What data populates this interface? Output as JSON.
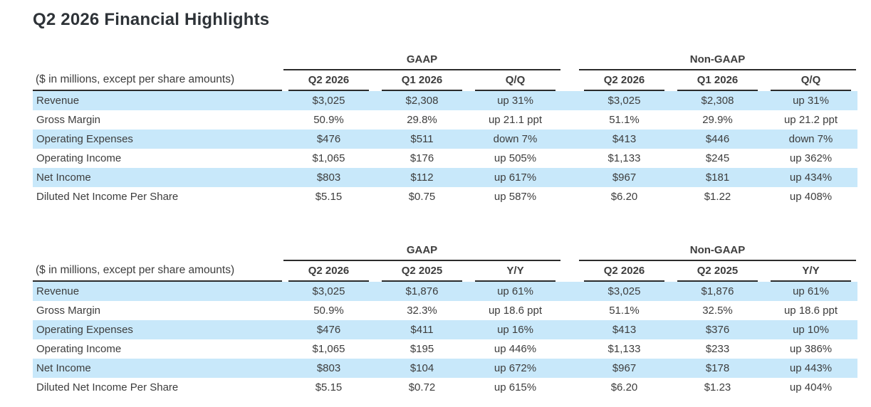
{
  "page": {
    "title": "Q2 2026 Financial Highlights"
  },
  "colors": {
    "row_stripe": "#c8e8fa",
    "rule": "#2b2b2b",
    "text": "#3d3d3d",
    "title": "#2e3338"
  },
  "tables": [
    {
      "note": "($ in millions, except per share amounts)",
      "groups": [
        "GAAP",
        "Non-GAAP"
      ],
      "columns": [
        "Q2 2026",
        "Q1 2026",
        "Q/Q",
        "Q2 2026",
        "Q1 2026",
        "Q/Q"
      ],
      "rows": [
        {
          "label": "Revenue",
          "values": [
            "$3,025",
            "$2,308",
            "up 31%",
            "$3,025",
            "$2,308",
            "up 31%"
          ]
        },
        {
          "label": "Gross Margin",
          "values": [
            "50.9%",
            "29.8%",
            "up 21.1 ppt",
            "51.1%",
            "29.9%",
            "up 21.2 ppt"
          ]
        },
        {
          "label": "Operating Expenses",
          "values": [
            "$476",
            "$511",
            "down 7%",
            "$413",
            "$446",
            "down 7%"
          ]
        },
        {
          "label": "Operating Income",
          "values": [
            "$1,065",
            "$176",
            "up 505%",
            "$1,133",
            "$245",
            "up 362%"
          ]
        },
        {
          "label": "Net Income",
          "values": [
            "$803",
            "$112",
            "up 617%",
            "$967",
            "$181",
            "up 434%"
          ]
        },
        {
          "label": "Diluted Net Income Per Share",
          "values": [
            "$5.15",
            "$0.75",
            "up 587%",
            "$6.20",
            "$1.22",
            "up 408%"
          ]
        }
      ]
    },
    {
      "note": "($ in millions, except per share amounts)",
      "groups": [
        "GAAP",
        "Non-GAAP"
      ],
      "columns": [
        "Q2 2026",
        "Q2 2025",
        "Y/Y",
        "Q2 2026",
        "Q2 2025",
        "Y/Y"
      ],
      "rows": [
        {
          "label": "Revenue",
          "values": [
            "$3,025",
            "$1,876",
            "up 61%",
            "$3,025",
            "$1,876",
            "up 61%"
          ]
        },
        {
          "label": "Gross Margin",
          "values": [
            "50.9%",
            "32.3%",
            "up 18.6 ppt",
            "51.1%",
            "32.5%",
            "up 18.6 ppt"
          ]
        },
        {
          "label": "Operating Expenses",
          "values": [
            "$476",
            "$411",
            "up 16%",
            "$413",
            "$376",
            "up 10%"
          ]
        },
        {
          "label": "Operating Income",
          "values": [
            "$1,065",
            "$195",
            "up 446%",
            "$1,133",
            "$233",
            "up 386%"
          ]
        },
        {
          "label": "Net Income",
          "values": [
            "$803",
            "$104",
            "up 672%",
            "$967",
            "$178",
            "up 443%"
          ]
        },
        {
          "label": "Diluted Net Income Per Share",
          "values": [
            "$5.15",
            "$0.72",
            "up 615%",
            "$6.20",
            "$1.23",
            "up 404%"
          ]
        }
      ]
    }
  ]
}
